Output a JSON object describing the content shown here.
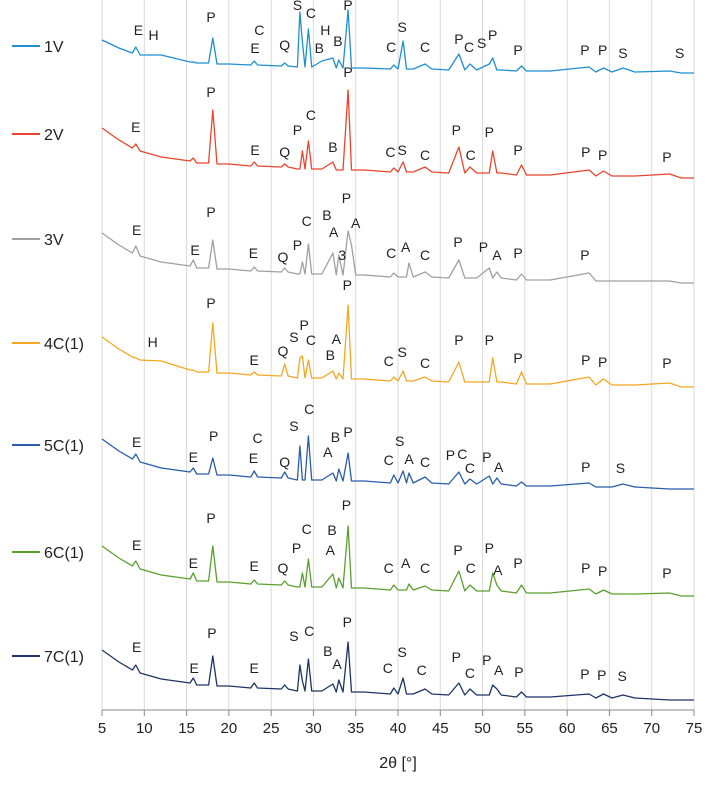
{
  "chart_data": {
    "type": "line",
    "x_label": "2θ [°]",
    "xlim": [
      5,
      75
    ],
    "xticks": [
      5,
      10,
      15,
      20,
      25,
      30,
      35,
      40,
      45,
      50,
      55,
      60,
      65,
      70,
      75
    ],
    "ylim": [
      0,
      710
    ],
    "grid": true,
    "x": [
      5,
      7,
      8.6,
      9,
      9.5,
      12,
      15.4,
      15.8,
      16.2,
      17.6,
      18.1,
      18.6,
      20,
      22.6,
      23,
      23.4,
      26.2,
      26.6,
      27,
      28.1,
      28.4,
      28.7,
      29,
      29.4,
      29.8,
      31,
      32.3,
      32.7,
      33,
      33.5,
      34.1,
      34.5,
      35,
      36,
      39.1,
      39.5,
      40,
      40.6,
      41,
      41.3,
      41.8,
      43.2,
      44,
      46,
      47.2,
      47.9,
      48.5,
      49.3,
      50.8,
      51.2,
      51.7,
      52.2,
      54,
      54.6,
      55.2,
      58,
      62.6,
      63.4,
      64.3,
      65.3,
      66.6,
      68,
      72.1,
      73.5,
      75
    ],
    "series": [
      {
        "name": "1V",
        "color": "#1f8fd0",
        "values": [
          670,
          662,
          657,
          663,
          655,
          655,
          648,
          648,
          647,
          647,
          672,
          646,
          646,
          645,
          649,
          645,
          644,
          647,
          644,
          643,
          698,
          668,
          643,
          681,
          643,
          649,
          652,
          642,
          650,
          642,
          700,
          642,
          642,
          642,
          641,
          645,
          641,
          669,
          641,
          641,
          641,
          646,
          641,
          640,
          656,
          640,
          646,
          640,
          646,
          652,
          640,
          640,
          639,
          644,
          639,
          639,
          643,
          638,
          642,
          638,
          642,
          638,
          639,
          637,
          637
        ],
        "annotations": [
          [
            "E",
            9.3,
            675
          ],
          [
            "H",
            11.1,
            670
          ],
          [
            "P",
            17.9,
            688
          ],
          [
            "C",
            23.6,
            675
          ],
          [
            "E",
            23.1,
            657
          ],
          [
            "Q",
            26.6,
            660
          ],
          [
            "S",
            28.1,
            700
          ],
          [
            "C",
            29.7,
            692
          ],
          [
            "H",
            31.4,
            675
          ],
          [
            "B",
            30.7,
            657
          ],
          [
            "B",
            32.9,
            664
          ],
          [
            "P",
            34.1,
            700
          ],
          [
            "C",
            39.2,
            658
          ],
          [
            "S",
            40.5,
            678
          ],
          [
            "C",
            43.2,
            658
          ],
          [
            "P",
            47.2,
            666
          ],
          [
            "C",
            48.4,
            658
          ],
          [
            "S",
            49.9,
            662
          ],
          [
            "P",
            51.2,
            670
          ],
          [
            "P",
            54.2,
            655
          ],
          [
            "P",
            62.1,
            655
          ],
          [
            "P",
            64.2,
            655
          ],
          [
            "S",
            66.6,
            652
          ],
          [
            "S",
            73.3,
            652
          ]
        ]
      },
      {
        "name": "2V",
        "color": "#e8452c",
        "values": [
          582,
          570,
          562,
          566,
          559,
          553,
          549,
          552,
          547,
          547,
          600,
          546,
          546,
          544,
          548,
          544,
          543,
          546,
          543,
          541,
          541,
          559,
          541,
          569,
          541,
          541,
          548,
          540,
          540,
          540,
          620,
          540,
          540,
          540,
          538,
          542,
          538,
          548,
          538,
          538,
          538,
          543,
          538,
          537,
          563,
          537,
          543,
          537,
          537,
          559,
          537,
          537,
          535,
          545,
          535,
          535,
          540,
          534,
          539,
          534,
          534,
          534,
          536,
          532,
          532
        ],
        "annotations": [
          [
            "E",
            9.0,
            578
          ],
          [
            "P",
            17.9,
            613
          ],
          [
            "E",
            23.1,
            555
          ],
          [
            "Q",
            26.6,
            553
          ],
          [
            "P",
            28.1,
            575
          ],
          [
            "C",
            29.7,
            590
          ],
          [
            "B",
            32.3,
            558
          ],
          [
            "P",
            34.1,
            633
          ],
          [
            "C",
            39.1,
            553
          ],
          [
            "S",
            40.5,
            555
          ],
          [
            "C",
            43.2,
            550
          ],
          [
            "P",
            46.9,
            575
          ],
          [
            "C",
            48.6,
            550
          ],
          [
            "P",
            50.8,
            573
          ],
          [
            "P",
            54.2,
            555
          ],
          [
            "P",
            62.2,
            553
          ],
          [
            "P",
            64.2,
            550
          ],
          [
            "P",
            71.8,
            548
          ]
        ]
      },
      {
        "name": "3V",
        "color": "#a0a0a0",
        "values": [
          477,
          465,
          457,
          464,
          454,
          448,
          444,
          450,
          442,
          442,
          470,
          441,
          441,
          439,
          443,
          439,
          438,
          442,
          438,
          436,
          436,
          448,
          436,
          466,
          436,
          436,
          457,
          435,
          455,
          435,
          479,
          465,
          435,
          435,
          433,
          437,
          433,
          433,
          433,
          447,
          433,
          438,
          433,
          432,
          450,
          432,
          432,
          432,
          442,
          432,
          438,
          432,
          430,
          436,
          430,
          430,
          437,
          429,
          429,
          429,
          429,
          429,
          429,
          427,
          427
        ],
        "annotations": [
          [
            "E",
            9.1,
            475
          ],
          [
            "P",
            17.9,
            493
          ],
          [
            "E",
            16.0,
            455
          ],
          [
            "E",
            22.9,
            452
          ],
          [
            "Q",
            26.4,
            448
          ],
          [
            "P",
            28.1,
            460
          ],
          [
            "C",
            29.2,
            484
          ],
          [
            "B",
            31.6,
            490
          ],
          [
            "A",
            32.4,
            473
          ],
          [
            "3",
            33.4,
            450
          ],
          [
            "P",
            33.9,
            507
          ],
          [
            "A",
            35.0,
            482
          ],
          [
            "C",
            39.2,
            452
          ],
          [
            "A",
            40.9,
            458
          ],
          [
            "C",
            43.2,
            450
          ],
          [
            "P",
            47.1,
            463
          ],
          [
            "P",
            50.1,
            458
          ],
          [
            "A",
            51.7,
            450
          ],
          [
            "P",
            54.2,
            452
          ],
          [
            "P",
            62.1,
            450
          ]
        ]
      },
      {
        "name": "4C(1)",
        "color": "#f5a623",
        "values": [
          373,
          361,
          353,
          352,
          350,
          349,
          340,
          340,
          338,
          338,
          387,
          337,
          337,
          335,
          338,
          335,
          334,
          346,
          334,
          332,
          352,
          354,
          332,
          350,
          332,
          332,
          339,
          331,
          337,
          331,
          405,
          331,
          331,
          331,
          329,
          333,
          329,
          339,
          329,
          329,
          329,
          333,
          329,
          328,
          348,
          328,
          328,
          328,
          328,
          352,
          328,
          328,
          326,
          338,
          326,
          326,
          333,
          325,
          331,
          325,
          325,
          325,
          327,
          323,
          323
        ],
        "annotations": [
          [
            "H",
            11.0,
            363
          ],
          [
            "P",
            17.9,
            402
          ],
          [
            "E",
            23.0,
            345
          ],
          [
            "Q",
            26.4,
            354
          ],
          [
            "S",
            27.7,
            368
          ],
          [
            "P",
            28.9,
            380
          ],
          [
            "C",
            29.7,
            365
          ],
          [
            "B",
            32.0,
            350
          ],
          [
            "A",
            32.7,
            366
          ],
          [
            "P",
            34.0,
            420
          ],
          [
            "C",
            38.9,
            344
          ],
          [
            "S",
            40.5,
            353
          ],
          [
            "C",
            43.2,
            342
          ],
          [
            "P",
            47.2,
            365
          ],
          [
            "P",
            50.8,
            365
          ],
          [
            "P",
            54.2,
            347
          ],
          [
            "P",
            62.2,
            345
          ],
          [
            "P",
            64.2,
            343
          ],
          [
            "P",
            71.8,
            342
          ]
        ]
      },
      {
        "name": "5C(1)",
        "color": "#2a5caa",
        "values": [
          271,
          259,
          251,
          256,
          248,
          242,
          238,
          242,
          236,
          236,
          252,
          235,
          235,
          233,
          239,
          233,
          232,
          238,
          232,
          230,
          264,
          230,
          230,
          274,
          230,
          230,
          237,
          229,
          241,
          229,
          257,
          229,
          229,
          229,
          227,
          235,
          227,
          239,
          227,
          237,
          227,
          233,
          227,
          226,
          238,
          226,
          231,
          226,
          234,
          226,
          232,
          226,
          224,
          228,
          224,
          224,
          227,
          223,
          223,
          223,
          226,
          223,
          221,
          221,
          221
        ],
        "annotations": [
          [
            "E",
            9.1,
            263
          ],
          [
            "E",
            15.8,
            248
          ],
          [
            "P",
            18.2,
            269
          ],
          [
            "C",
            23.4,
            267
          ],
          [
            "E",
            22.9,
            247
          ],
          [
            "Q",
            26.6,
            243
          ],
          [
            "S",
            27.7,
            279
          ],
          [
            "C",
            29.5,
            296
          ],
          [
            "B",
            32.6,
            268
          ],
          [
            "A",
            31.7,
            253
          ],
          [
            "P",
            34.1,
            273
          ],
          [
            "C",
            38.9,
            245
          ],
          [
            "S",
            40.2,
            264
          ],
          [
            "A",
            41.3,
            246
          ],
          [
            "C",
            43.2,
            243
          ],
          [
            "P",
            46.2,
            250
          ],
          [
            "C",
            47.6,
            251
          ],
          [
            "C",
            48.5,
            237
          ],
          [
            "P",
            50.5,
            248
          ],
          [
            "A",
            51.9,
            238
          ],
          [
            "P",
            62.2,
            238
          ],
          [
            "S",
            66.3,
            237
          ]
        ]
      },
      {
        "name": "6C(1)",
        "color": "#5aa02c",
        "values": [
          164,
          152,
          144,
          149,
          141,
          135,
          131,
          137,
          129,
          129,
          164,
          128,
          128,
          126,
          130,
          126,
          125,
          129,
          125,
          123,
          123,
          137,
          123,
          151,
          123,
          123,
          136,
          122,
          132,
          122,
          184,
          122,
          122,
          122,
          120,
          125,
          120,
          120,
          120,
          126,
          120,
          124,
          120,
          119,
          139,
          119,
          125,
          119,
          119,
          137,
          125,
          119,
          117,
          125,
          117,
          117,
          121,
          116,
          120,
          116,
          116,
          116,
          117,
          114,
          114
        ],
        "annotations": [
          [
            "E",
            9.1,
            160
          ],
          [
            "E",
            15.8,
            142
          ],
          [
            "P",
            17.9,
            187
          ],
          [
            "E",
            23.0,
            139
          ],
          [
            "Q",
            26.4,
            137
          ],
          [
            "P",
            28.0,
            157
          ],
          [
            "C",
            29.2,
            176
          ],
          [
            "B",
            32.2,
            175
          ],
          [
            "A",
            32.0,
            155
          ],
          [
            "P",
            33.9,
            200
          ],
          [
            "C",
            38.9,
            137
          ],
          [
            "A",
            40.9,
            142
          ],
          [
            "C",
            43.2,
            137
          ],
          [
            "P",
            47.1,
            155
          ],
          [
            "C",
            48.6,
            137
          ],
          [
            "P",
            50.8,
            157
          ],
          [
            "A",
            51.8,
            135
          ],
          [
            "P",
            54.2,
            142
          ],
          [
            "P",
            62.2,
            137
          ],
          [
            "P",
            64.2,
            134
          ],
          [
            "P",
            71.8,
            132
          ]
        ]
      },
      {
        "name": "7C(1)",
        "color": "#1e3466",
        "values": [
          60,
          48,
          40,
          45,
          37,
          31,
          27,
          32,
          25,
          25,
          54,
          24,
          24,
          22,
          27,
          22,
          21,
          25,
          21,
          19,
          45,
          29,
          19,
          51,
          19,
          19,
          26,
          18,
          30,
          18,
          68,
          18,
          18,
          18,
          16,
          22,
          16,
          32,
          16,
          16,
          16,
          21,
          16,
          15,
          27,
          15,
          21,
          15,
          15,
          25,
          21,
          15,
          13,
          18,
          13,
          13,
          16,
          12,
          16,
          12,
          15,
          12,
          10,
          10,
          10
        ],
        "annotations": [
          [
            "E",
            9.1,
            58
          ],
          [
            "E",
            15.9,
            37
          ],
          [
            "P",
            18.0,
            72
          ],
          [
            "E",
            23.0,
            37
          ],
          [
            "S",
            27.7,
            69
          ],
          [
            "C",
            29.5,
            74
          ],
          [
            "B",
            31.7,
            54
          ],
          [
            "A",
            32.8,
            41
          ],
          [
            "P",
            34.0,
            83
          ],
          [
            "C",
            38.8,
            37
          ],
          [
            "S",
            40.5,
            53
          ],
          [
            "C",
            42.8,
            35
          ],
          [
            "P",
            46.9,
            48
          ],
          [
            "C",
            48.5,
            32
          ],
          [
            "P",
            50.5,
            45
          ],
          [
            "A",
            51.9,
            35
          ],
          [
            "P",
            54.3,
            33
          ],
          [
            "P",
            62.1,
            31
          ],
          [
            "P",
            64.1,
            30
          ],
          [
            "S",
            66.5,
            29
          ]
        ]
      }
    ]
  }
}
